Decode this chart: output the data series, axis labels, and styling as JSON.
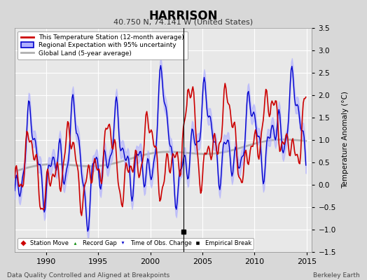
{
  "title": "HARRISON",
  "subtitle": "40.750 N, 74.141 W (United States)",
  "ylabel": "Temperature Anomaly (°C)",
  "xlabel_left": "Data Quality Controlled and Aligned at Breakpoints",
  "xlabel_right": "Berkeley Earth",
  "ylim": [
    -1.5,
    3.5
  ],
  "xlim": [
    1987.0,
    2015.5
  ],
  "yticks": [
    -1.5,
    -1,
    -0.5,
    0,
    0.5,
    1,
    1.5,
    2,
    2.5,
    3,
    3.5
  ],
  "xticks": [
    1990,
    1995,
    2000,
    2005,
    2010,
    2015
  ],
  "bg_color": "#d8d8d8",
  "plot_bg_color": "#e8e8e8",
  "grid_color": "#ffffff",
  "station_line_color": "#cc0000",
  "regional_line_color": "#0000cc",
  "regional_fill_color": "#b0b0ff",
  "global_line_color": "#b0b0b0",
  "legend_entries": [
    "This Temperature Station (12-month average)",
    "Regional Expectation with 95% uncertainty",
    "Global Land (5-year average)"
  ],
  "vertical_line_year": 2003.2,
  "marker_events": {
    "obs_changes": [
      2003.2
    ],
    "emp_breaks": [
      2003.2
    ]
  }
}
